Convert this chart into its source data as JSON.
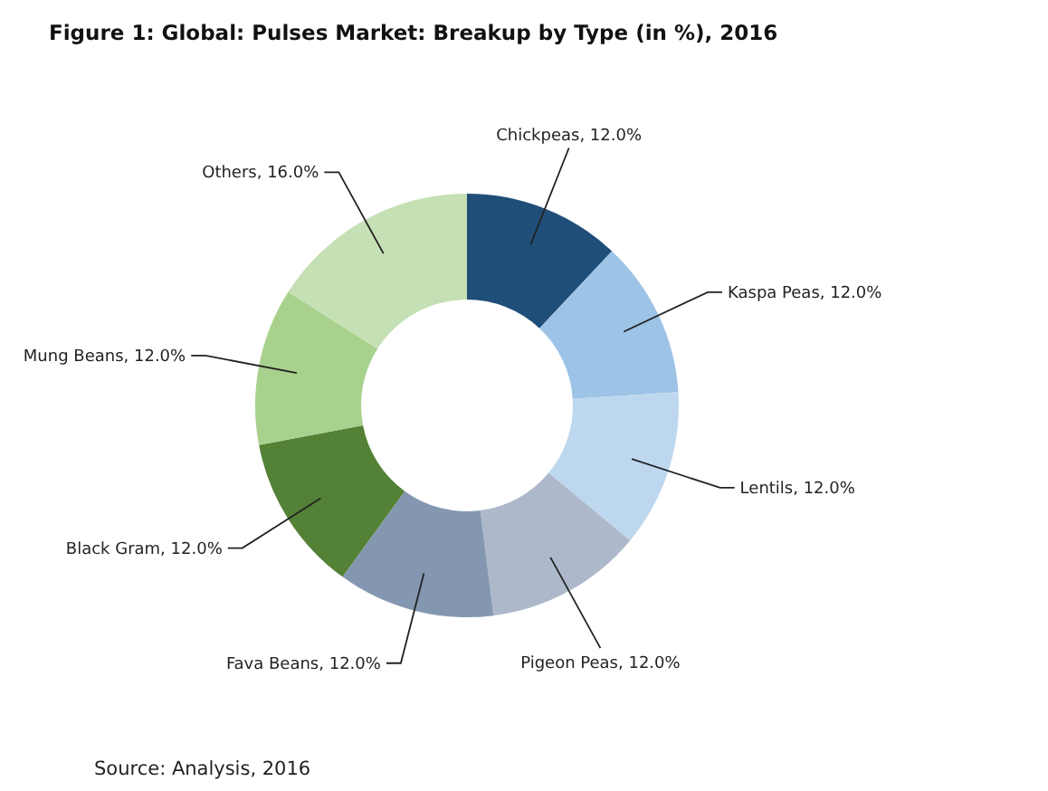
{
  "chart_data": {
    "type": "donut",
    "title": "Figure 1: Global: Pulses Market: Breakup by Type (in %), 2016",
    "categories": [
      "Chickpeas",
      "Kaspa Peas",
      "Lentils",
      "Pigeon Peas",
      "Fava Beans",
      "Black Gram",
      "Mung Beans",
      "Others"
    ],
    "values": [
      12,
      12,
      12,
      12,
      12,
      12,
      12,
      16
    ],
    "colors": [
      "#1f4e79",
      "#9dc3e6",
      "#bdd7ee",
      "#adb9ca",
      "#8497b0",
      "#538135",
      "#a9d18e",
      "#c5e0b4"
    ],
    "value_labels": [
      "12.0%",
      "12.0%",
      "12.0%",
      "12.0%",
      "12.0%",
      "12.0%",
      "12.0%",
      "16.0%"
    ],
    "annotations": [
      "Source: Analysis, 2016"
    ]
  }
}
